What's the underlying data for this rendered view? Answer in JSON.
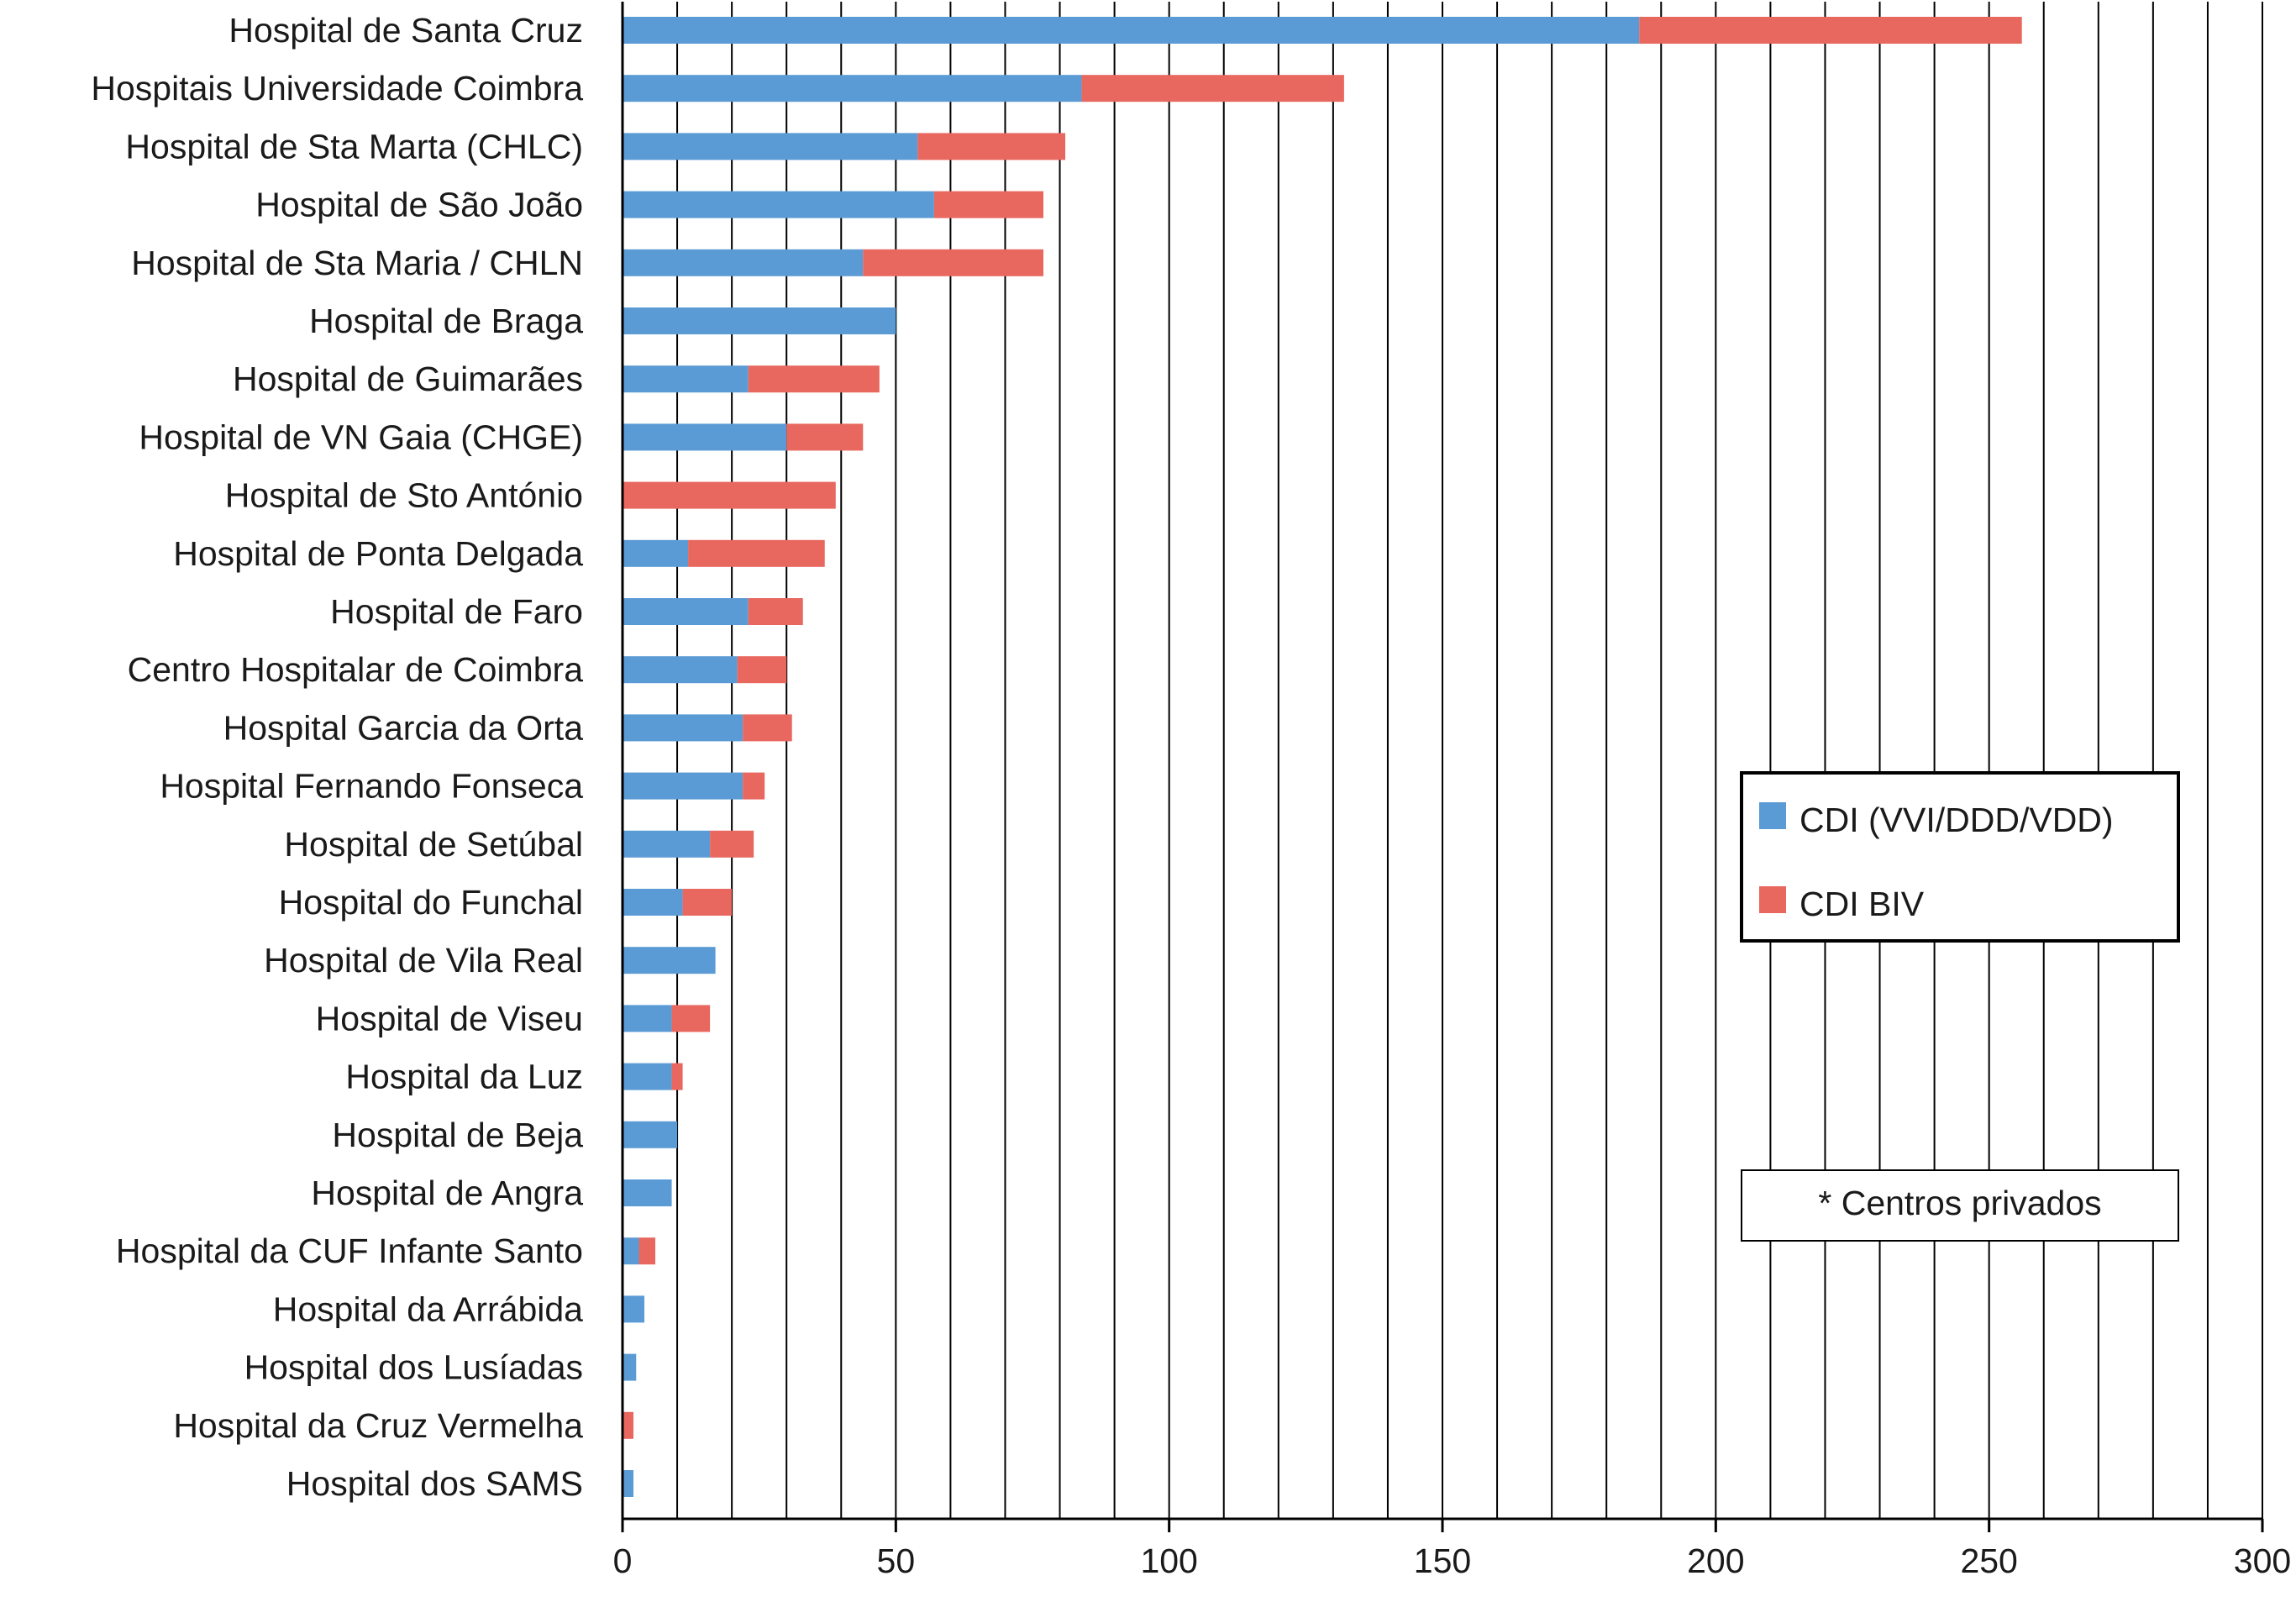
{
  "chart_data": {
    "type": "bar",
    "orientation": "horizontal",
    "stacked": true,
    "title": "",
    "xlabel": "",
    "ylabel": "",
    "xlim": [
      0,
      300
    ],
    "x_ticks": [
      0,
      50,
      100,
      150,
      200,
      250,
      300
    ],
    "grid": "vertical lines every 10 units",
    "categories": [
      "Hospital de Santa Cruz",
      "Hospitais Universidade Coimbra",
      "Hospital de Sta Marta (CHLC)",
      "Hospital de São João",
      "Hospital de Sta Maria / CHLN",
      "Hospital de Braga",
      "Hospital de Guimarães",
      "Hospital de VN Gaia (CHGE)",
      "Hospital de Sto António",
      "Hospital de Ponta Delgada",
      "Hospital de Faro",
      "Centro Hospitalar de Coimbra",
      "Hospital Garcia da Orta",
      "Hospital Fernando Fonseca",
      "Hospital de Setúbal",
      "Hospital do Funchal",
      "Hospital de Vila Real",
      "Hospital de Viseu",
      "Hospital da Luz",
      "Hospital de Beja",
      "Hospital de Angra",
      "Hospital da CUF Infante Santo",
      "Hospital da Arrábida",
      "Hospital dos Lusíadas",
      "Hospital da Cruz Vermelha",
      "Hospital dos SAMS"
    ],
    "series": [
      {
        "name": "CDI (VVI/DDD/VDD)",
        "color": "#5b9bd5",
        "values": [
          186,
          84,
          54,
          57,
          44,
          50,
          23,
          30,
          0,
          12,
          23,
          21,
          22,
          22,
          16,
          11,
          17,
          9,
          9,
          10,
          9,
          3,
          4,
          2.5,
          0,
          2
        ]
      },
      {
        "name": "CDI BIV",
        "color": "#e8675f",
        "values": [
          70,
          48,
          27,
          20,
          33,
          0,
          24,
          14,
          39,
          25,
          10,
          9,
          9,
          4,
          8,
          9,
          0,
          7,
          2,
          0,
          0,
          3,
          0,
          0,
          2,
          0
        ]
      }
    ],
    "legend": {
      "position": "right-middle",
      "entries": [
        "CDI (VVI/DDD/VDD)",
        "CDI BIV"
      ]
    },
    "annotation": "* Centros privados"
  }
}
